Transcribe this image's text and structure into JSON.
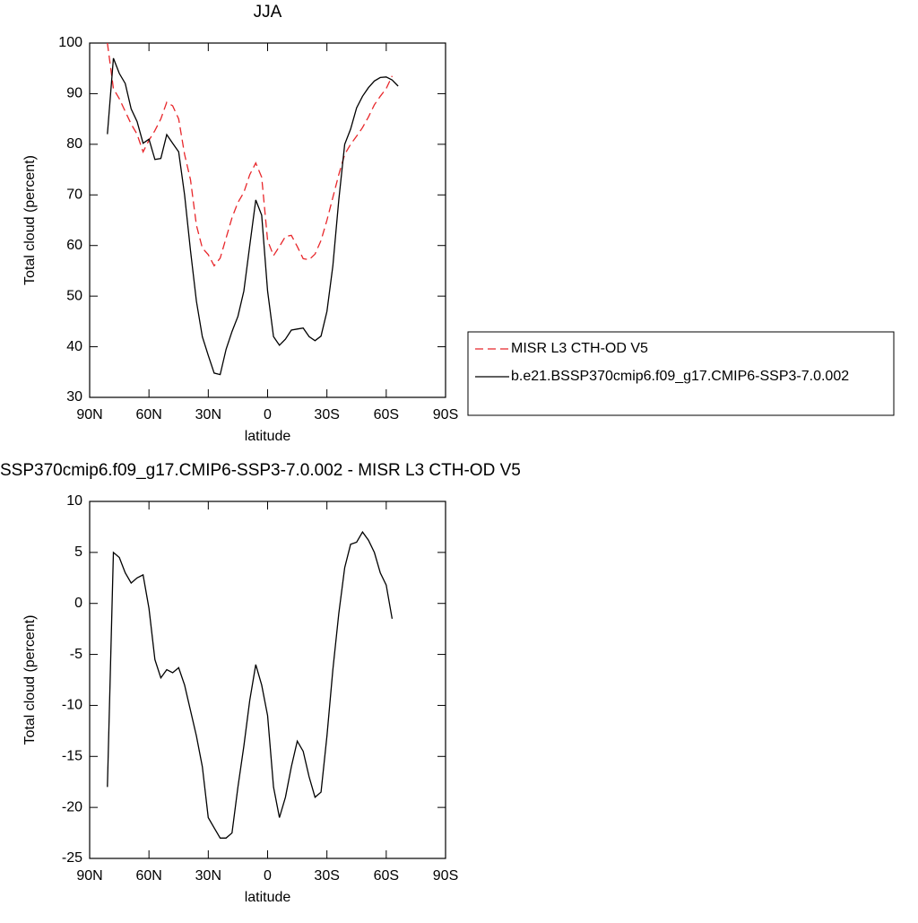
{
  "chart_data": [
    {
      "type": "line",
      "title": "JJA",
      "x_label": "latitude",
      "y_label": "Total cloud (percent)",
      "x": [
        81,
        78,
        75,
        72,
        69,
        66,
        63,
        60,
        57,
        54,
        51,
        48,
        45,
        42,
        39,
        36,
        33,
        30,
        27,
        24,
        21,
        18,
        15,
        12,
        9,
        6,
        3,
        0,
        -3,
        -6,
        -9,
        -12,
        -15,
        -18,
        -21,
        -24,
        -27,
        -30,
        -33,
        -36,
        -39,
        -42,
        -45,
        -48,
        -51,
        -54,
        -57,
        -60,
        -63,
        -66
      ],
      "series": [
        {
          "name": "MISR L3 CTH-OD V5",
          "color": "#e8262a",
          "style": "dashed",
          "values": [
            100,
            91,
            89,
            86.5,
            84,
            82,
            78.5,
            80.8,
            82.7,
            85,
            88.3,
            87.6,
            85,
            78,
            73,
            64,
            59.5,
            58.2,
            56,
            57.5,
            61.5,
            65.5,
            68.5,
            70.5,
            74,
            76.3,
            73.5,
            61,
            58,
            59.8,
            61.8,
            62,
            59.8,
            57.4,
            57.2,
            58.3,
            61,
            65,
            69.5,
            74,
            78,
            80,
            81.6,
            83.3,
            85.4,
            87.8,
            89.5,
            91,
            93.5,
            null
          ]
        },
        {
          "name": "b.e21.BSSP370cmip6.f09_g17.CMIP6-SSP3-7.0.002",
          "color": "#000000",
          "style": "solid",
          "values": [
            82,
            97,
            94,
            92,
            87,
            84.5,
            80.2,
            81,
            77,
            77.2,
            81.9,
            80.2,
            78.5,
            70,
            59,
            49,
            42,
            38.3,
            34.8,
            34.5,
            39.5,
            43,
            46,
            51,
            60,
            69,
            66,
            51,
            42,
            40.3,
            41.5,
            43.3,
            43.5,
            43.7,
            42,
            41.2,
            42.1,
            47,
            56,
            69,
            80,
            83,
            87.2,
            89.5,
            91.2,
            92.5,
            93.2,
            93.3,
            92.7,
            91.5
          ]
        }
      ],
      "xlim": [
        90,
        -90
      ],
      "xticks": [
        {
          "value": 90,
          "label": "90N"
        },
        {
          "value": 60,
          "label": "60N"
        },
        {
          "value": 30,
          "label": "30N"
        },
        0,
        {
          "value": -30,
          "label": "30S"
        },
        {
          "value": -60,
          "label": "60S"
        },
        {
          "value": -90,
          "label": "90S"
        }
      ],
      "ylim": [
        30,
        100
      ],
      "yticks": [
        30,
        40,
        50,
        60,
        70,
        80,
        90,
        100
      ],
      "legend": "right"
    },
    {
      "type": "line",
      "title": "SSP370cmip6.f09_g17.CMIP6-SSP3-7.0.002 - MISR L3 CTH-OD V5",
      "x_label": "latitude",
      "y_label": "Total cloud (percent)",
      "x": [
        81,
        78,
        75,
        72,
        69,
        66,
        63,
        60,
        57,
        54,
        51,
        48,
        45,
        42,
        39,
        36,
        33,
        30,
        27,
        24,
        21,
        18,
        15,
        12,
        9,
        6,
        3,
        0,
        -3,
        -6,
        -9,
        -12,
        -15,
        -18,
        -21,
        -24,
        -27,
        -30,
        -33,
        -36,
        -39,
        -42,
        -45,
        -48,
        -51,
        -54,
        -57,
        -60,
        -63
      ],
      "series": [
        {
          "color": "#000000",
          "style": "solid",
          "values": [
            -18,
            5,
            4.5,
            3,
            2,
            2.5,
            2.8,
            -0.5,
            -5.5,
            -7.3,
            -6.5,
            -6.8,
            -6.3,
            -8,
            -10.5,
            -13,
            -16,
            -21,
            -22,
            -23,
            -23,
            -22.5,
            -18,
            -14,
            -9.5,
            -6,
            -8,
            -11,
            -18,
            -21,
            -19,
            -16,
            -13.5,
            -14.5,
            -17,
            -19,
            -18.5,
            -13,
            -6.5,
            -1,
            3.5,
            5.8,
            6,
            7,
            6.2,
            5,
            3,
            1.8,
            -1.5
          ]
        }
      ],
      "xlim": [
        90,
        -90
      ],
      "xticks": [
        {
          "value": 90,
          "label": "90N"
        },
        {
          "value": 60,
          "label": "60N"
        },
        {
          "value": 30,
          "label": "30N"
        },
        0,
        {
          "value": -30,
          "label": "30S"
        },
        {
          "value": -60,
          "label": "60S"
        },
        {
          "value": -90,
          "label": "90S"
        }
      ],
      "ylim": [
        -25,
        10
      ],
      "yticks": [
        -25,
        -20,
        -15,
        -10,
        -5,
        0,
        5,
        10
      ]
    }
  ]
}
